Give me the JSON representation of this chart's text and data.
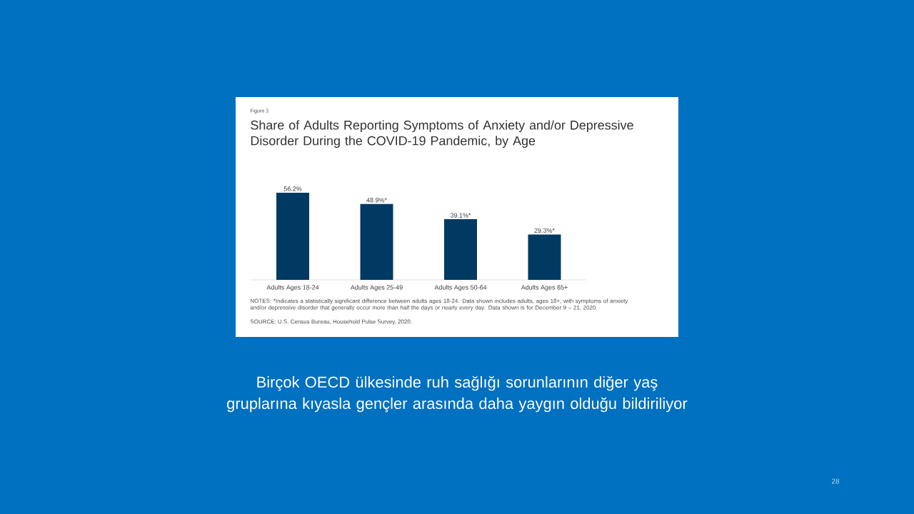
{
  "chart_data": {
    "type": "bar",
    "title": "Share of Adults Reporting Symptoms of Anxiety and/or Depressive Disorder During the COVID-19 Pandemic, by Age",
    "categories": [
      "Adults Ages 18-24",
      "Adults Ages 25-49",
      "Adults Ages 50-64",
      "Adults Ages 65+"
    ],
    "values": [
      56.2,
      48.9,
      39.1,
      29.3
    ],
    "value_labels": [
      "56.2%",
      "48.9%*",
      "39.1%*",
      "29.3%*"
    ],
    "color": "#003a63",
    "annotations": [
      "Figure 3",
      "NOTES: *Indicates a statistically significant difference between adults ages 18-24. Data shown includes adults, ages 18+, with symptoms of anxiety and/or depressive disorder that generally occur more than half the days or nearly every day. Data shown is for December 9 – 21, 2020.",
      "SOURCE: U.S. Census Bureau, Household Pulse Survey, 2020.",
      "Birçok OECD ülkesinde ruh  sağlığı sorunlarının diğer yaş gruplarına kıyasla gençler arasında daha yaygın olduğu bildiriliyor",
      "28"
    ]
  }
}
